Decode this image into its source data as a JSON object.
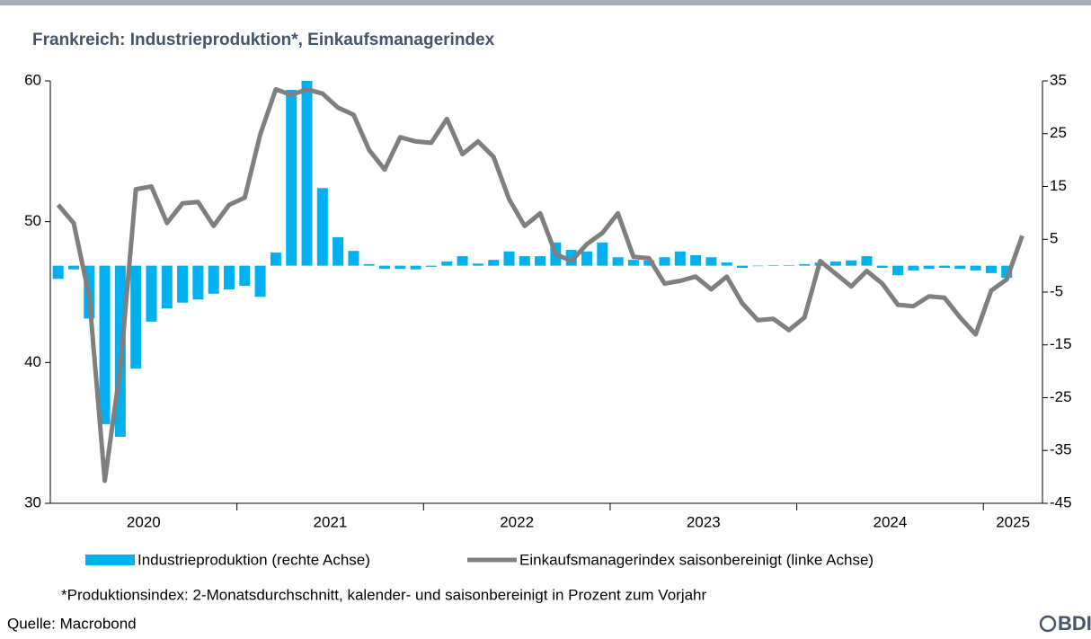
{
  "chart_data": {
    "type": "bar-line",
    "title": "Frankreich: Industrieproduktion*, Einkaufsmanagerindex",
    "footnote": "*Produktionsindex: 2-Monatsdurchschnitt, kalender- und saisonbereinigt in Prozent zum Vorjahr",
    "source": "Quelle: Macrobond",
    "logo": "BDI",
    "categories": [
      null,
      null,
      null,
      null,
      null,
      null,
      null,
      null,
      null,
      null,
      null,
      null,
      null,
      null,
      null,
      null,
      null,
      null,
      null,
      null,
      null,
      null,
      null,
      null,
      null,
      null,
      null,
      null,
      null,
      null,
      null,
      null,
      null,
      null,
      null,
      null,
      null,
      null,
      null,
      null,
      null,
      null,
      null,
      null,
      null,
      null,
      null,
      null,
      null,
      null,
      null,
      null,
      null,
      null,
      null,
      null,
      null,
      null,
      null,
      null,
      null,
      null,
      null
    ],
    "year_labels": [
      "2020",
      "2021",
      "2022",
      "2023",
      "2024",
      "2025"
    ],
    "ylim": [
      30,
      60
    ],
    "yticks": [
      30,
      40,
      50,
      60
    ],
    "y2lim": [
      -45,
      35
    ],
    "y2ticks": [
      -45,
      -35,
      -25,
      -15,
      -5,
      5,
      15,
      25,
      35
    ],
    "series": [
      {
        "name": "Industrieproduktion (rechte Achse)",
        "type": "bar",
        "axis": "y2",
        "color": "#00b0f0",
        "values": [
          -2.5,
          -0.7,
          -10,
          -30,
          -32.4,
          -19.5,
          -10.6,
          -8.1,
          -7.0,
          -6.4,
          -5.3,
          -4.5,
          -3.8,
          -5.9,
          2.5,
          33.3,
          35,
          14.7,
          5.4,
          2.8,
          0.3,
          -0.6,
          -0.6,
          -0.7,
          -0.2,
          0.8,
          1.8,
          0.4,
          1.1,
          2.7,
          1.8,
          1.8,
          4.4,
          3.0,
          2.7,
          4.4,
          1.6,
          1.1,
          1.0,
          1.6,
          2.7,
          2.0,
          1.6,
          0.6,
          -0.4,
          -0.1,
          0.1,
          0.1,
          0.3,
          0.6,
          0.8,
          1.0,
          1.8,
          -0.4,
          -1.8,
          -0.9,
          -0.6,
          -0.4,
          -0.6,
          -0.9,
          -1.4,
          -2.3,
          null
        ]
      },
      {
        "name": "Einkaufsmanagerindex saisonbereinigt (linke Achse)",
        "type": "line",
        "color": "#7f7f7f",
        "values": [
          51.2,
          49.9,
          44.7,
          31.6,
          39.6,
          52.3,
          52.5,
          49.9,
          51.3,
          51.4,
          49.7,
          51.2,
          51.7,
          56.2,
          59.4,
          59.0,
          59.4,
          59.1,
          58.1,
          57.6,
          55.1,
          53.7,
          56.0,
          55.7,
          55.6,
          57.3,
          54.8,
          55.7,
          54.6,
          51.6,
          49.7,
          50.6,
          47.7,
          47.2,
          48.4,
          49.2,
          50.6,
          47.5,
          47.4,
          45.6,
          45.8,
          46.1,
          45.2,
          46.1,
          44.2,
          43.0,
          43.1,
          42.3,
          43.2,
          47.2,
          46.3,
          45.4,
          46.5,
          45.6,
          44.1,
          44.0,
          44.7,
          44.6,
          43.2,
          42.0,
          45.1,
          45.9,
          49.0
        ]
      }
    ]
  }
}
